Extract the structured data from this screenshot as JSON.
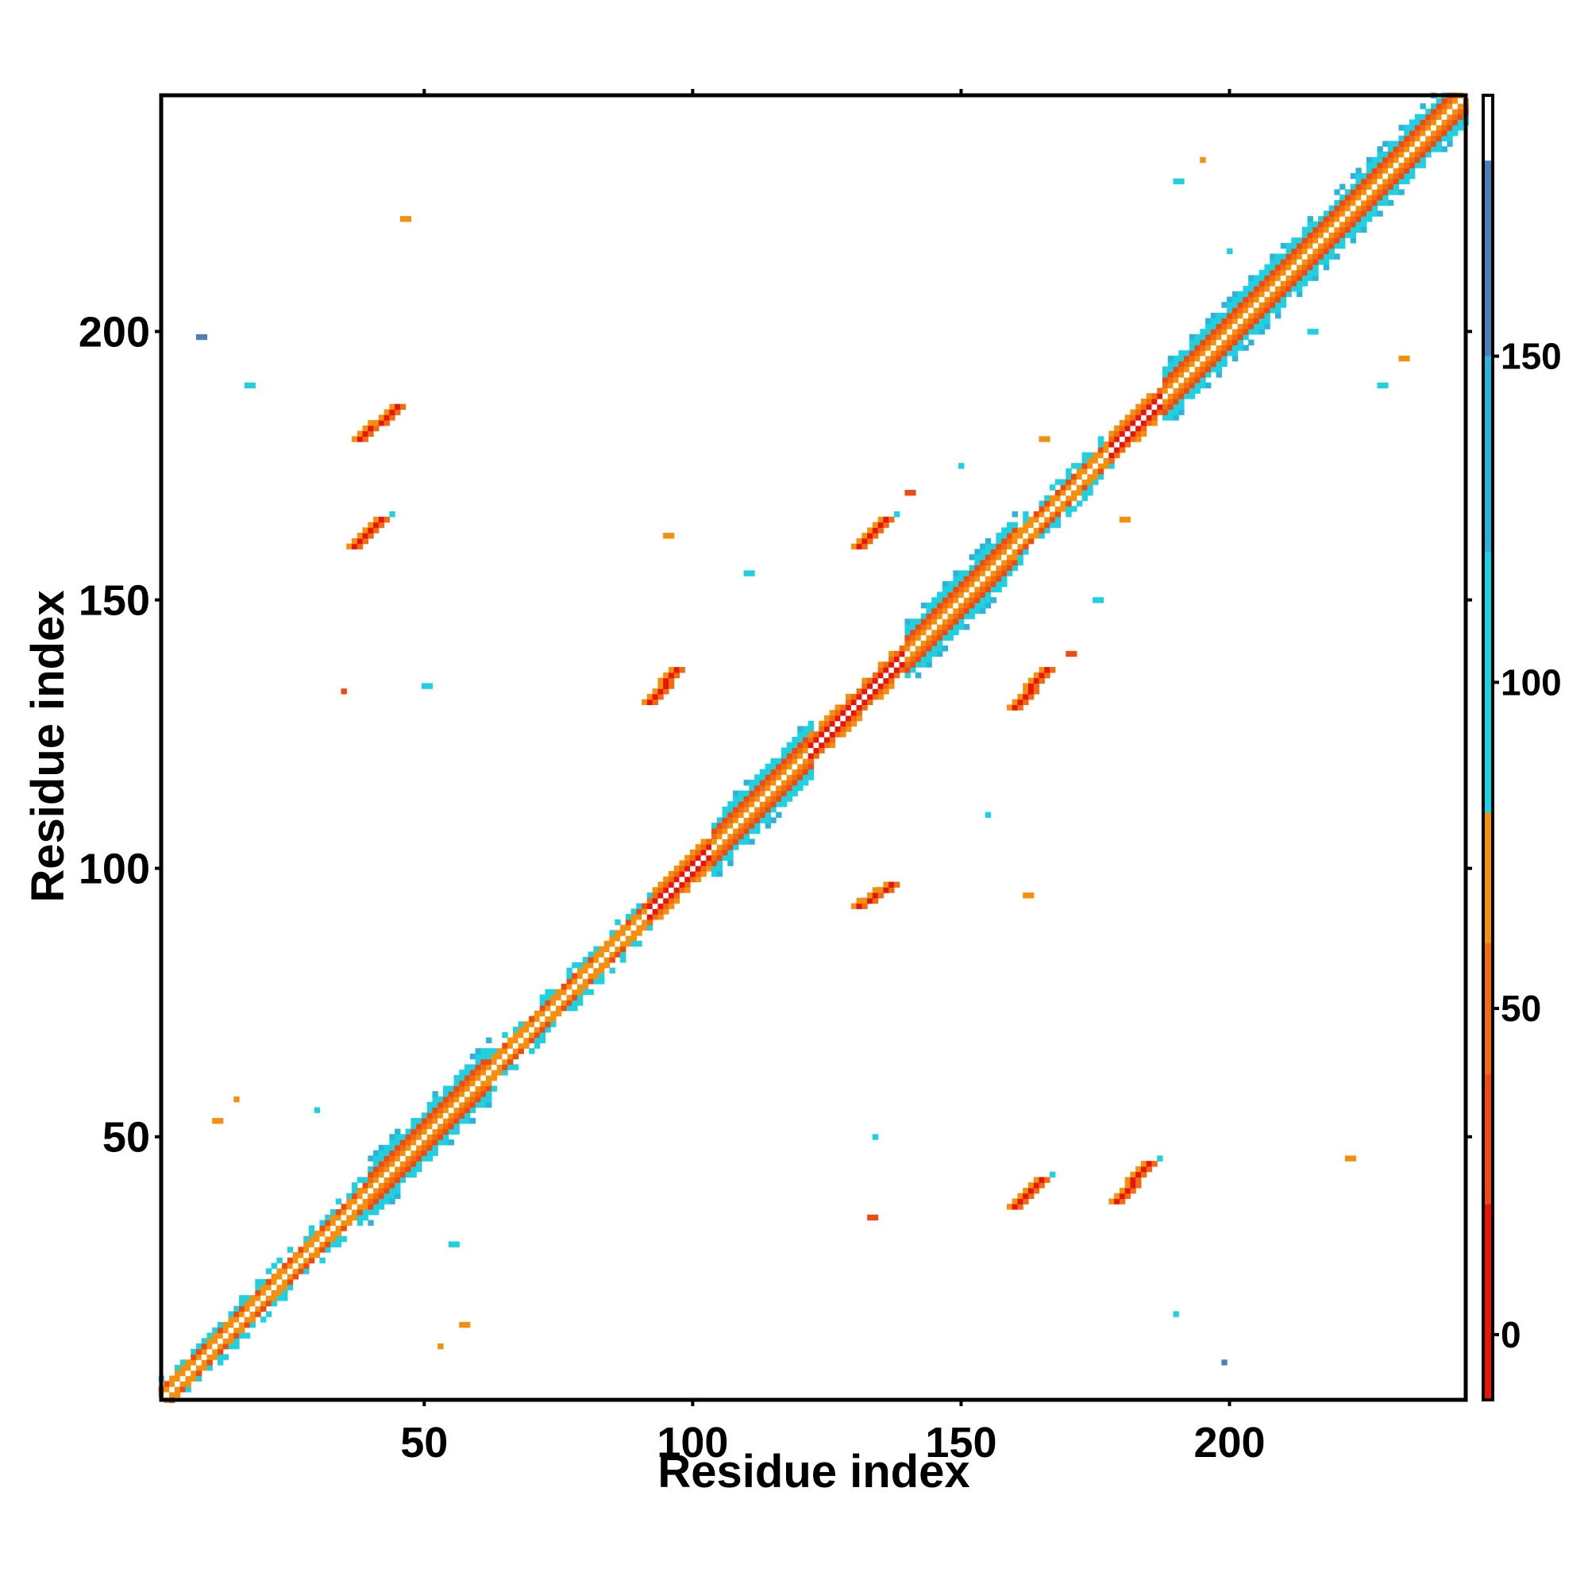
{
  "chart_data": {
    "type": "heatmap",
    "xlabel": "Residue index",
    "ylabel": "Residue index",
    "xlim": [
      1,
      244
    ],
    "ylim": [
      1,
      244
    ],
    "x_ticks": [
      50,
      100,
      150,
      200
    ],
    "y_ticks": [
      50,
      100,
      150,
      200
    ],
    "colorbar": {
      "range": [
        -10,
        190
      ],
      "ticks": [
        0,
        50,
        100,
        150
      ],
      "bands": [
        {
          "from": -10,
          "to": 20,
          "color": "#e8150b"
        },
        {
          "from": 20,
          "to": 40,
          "color": "#ef4a10"
        },
        {
          "from": 40,
          "to": 60,
          "color": "#f26a12"
        },
        {
          "from": 60,
          "to": 80,
          "color": "#f5900f"
        },
        {
          "from": 80,
          "to": 120,
          "color": "#1ed0e0"
        },
        {
          "from": 120,
          "to": 150,
          "color": "#2fb2d8"
        },
        {
          "from": 150,
          "to": 180,
          "color": "#4e7fb8"
        },
        {
          "from": 180,
          "to": 190,
          "color": "#ffffff"
        }
      ]
    },
    "diagonal_segments": [
      {
        "from": 1,
        "to": 40,
        "pattern": "mixed"
      },
      {
        "from": 40,
        "to": 62,
        "pattern": "helix"
      },
      {
        "from": 62,
        "to": 92,
        "pattern": "mixed"
      },
      {
        "from": 92,
        "to": 104,
        "pattern": "strand"
      },
      {
        "from": 104,
        "to": 122,
        "pattern": "helix"
      },
      {
        "from": 122,
        "to": 140,
        "pattern": "strand"
      },
      {
        "from": 140,
        "to": 160,
        "pattern": "helix"
      },
      {
        "from": 160,
        "to": 178,
        "pattern": "mixed"
      },
      {
        "from": 178,
        "to": 188,
        "pattern": "strand"
      },
      {
        "from": 188,
        "to": 205,
        "pattern": "helix"
      },
      {
        "from": 205,
        "to": 244,
        "pattern": "helix"
      }
    ],
    "contact_blobs": [
      {
        "x": [
          37,
          42
        ],
        "y": [
          160,
          165
        ],
        "value": 10
      },
      {
        "x": [
          38,
          45
        ],
        "y": [
          180,
          186
        ],
        "value": 10
      },
      {
        "x": [
          92,
          97
        ],
        "y": [
          131,
          137
        ],
        "value": 10
      },
      {
        "x": [
          131,
          136
        ],
        "y": [
          160,
          165
        ],
        "value": 10
      },
      {
        "x": [
          131,
          137
        ],
        "y": [
          93,
          97
        ],
        "value": 10
      },
      {
        "x": [
          160,
          166
        ],
        "y": [
          130,
          137
        ],
        "value": 10
      },
      {
        "x": [
          160,
          165
        ],
        "y": [
          37,
          42
        ],
        "value": 10
      },
      {
        "x": [
          179,
          185
        ],
        "y": [
          38,
          45
        ],
        "value": 10
      }
    ],
    "contact_points": [
      {
        "x": 46,
        "y": 221,
        "value": 70
      },
      {
        "x": 222,
        "y": 46,
        "value": 70
      },
      {
        "x": 8,
        "y": 199,
        "value": 160
      },
      {
        "x": 199,
        "y": 8,
        "value": 160
      },
      {
        "x": 17,
        "y": 190,
        "value": 100
      },
      {
        "x": 190,
        "y": 17,
        "value": 100
      },
      {
        "x": 11,
        "y": 53,
        "value": 60
      },
      {
        "x": 53,
        "y": 11,
        "value": 60
      },
      {
        "x": 57,
        "y": 15,
        "value": 60
      },
      {
        "x": 15,
        "y": 57,
        "value": 60
      },
      {
        "x": 30,
        "y": 55,
        "value": 100
      },
      {
        "x": 55,
        "y": 30,
        "value": 100
      },
      {
        "x": 35,
        "y": 133,
        "value": 20
      },
      {
        "x": 133,
        "y": 35,
        "value": 20
      },
      {
        "x": 50,
        "y": 134,
        "value": 100
      },
      {
        "x": 134,
        "y": 50,
        "value": 100
      },
      {
        "x": 110,
        "y": 155,
        "value": 100
      },
      {
        "x": 155,
        "y": 110,
        "value": 100
      },
      {
        "x": 95,
        "y": 162,
        "value": 60
      },
      {
        "x": 162,
        "y": 95,
        "value": 60
      },
      {
        "x": 140,
        "y": 170,
        "value": 20
      },
      {
        "x": 170,
        "y": 140,
        "value": 20
      },
      {
        "x": 150,
        "y": 175,
        "value": 100
      },
      {
        "x": 175,
        "y": 150,
        "value": 100
      },
      {
        "x": 165,
        "y": 180,
        "value": 60
      },
      {
        "x": 180,
        "y": 165,
        "value": 60
      },
      {
        "x": 190,
        "y": 228,
        "value": 100
      },
      {
        "x": 228,
        "y": 190,
        "value": 100
      },
      {
        "x": 195,
        "y": 232,
        "value": 70
      },
      {
        "x": 232,
        "y": 195,
        "value": 70
      },
      {
        "x": 200,
        "y": 215,
        "value": 100
      },
      {
        "x": 215,
        "y": 200,
        "value": 100
      }
    ]
  }
}
